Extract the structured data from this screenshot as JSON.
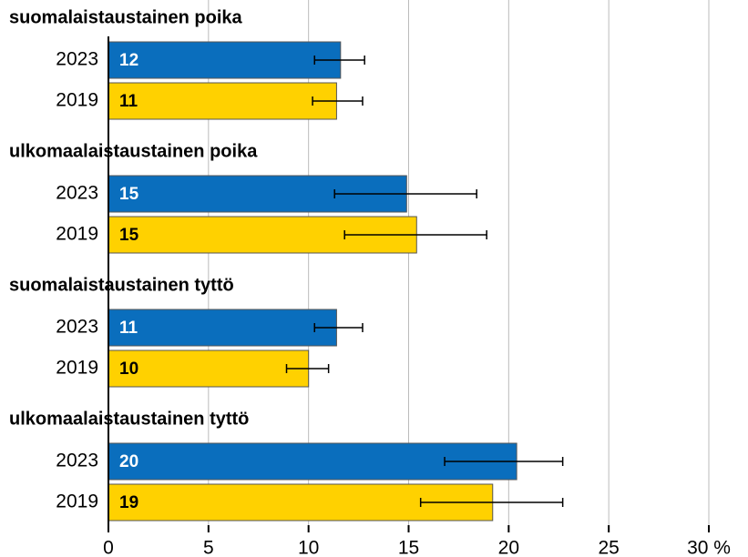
{
  "chart_data": {
    "type": "bar",
    "orientation": "horizontal",
    "categories": [
      "suomalaistaustainen poika",
      "ulkomaalaistaustainen poika",
      "suomalaistaustainen tyttö",
      "ulkomaalaistaustainen tyttö"
    ],
    "series": [
      {
        "name": "2023",
        "color": "#0a6ebd",
        "label_color": "#ffffff",
        "values": [
          11.6,
          14.9,
          11.4,
          20.4
        ],
        "value_labels": [
          "12",
          "15",
          "11",
          "20"
        ],
        "ci_low": [
          10.3,
          11.3,
          10.3,
          16.8
        ],
        "ci_high": [
          12.8,
          18.4,
          12.7,
          22.7
        ]
      },
      {
        "name": "2019",
        "color": "#ffd100",
        "label_color": "#000000",
        "values": [
          11.4,
          15.4,
          10.0,
          19.2
        ],
        "value_labels": [
          "11",
          "15",
          "10",
          "19"
        ],
        "ci_low": [
          10.2,
          11.8,
          8.9,
          15.6
        ],
        "ci_high": [
          12.7,
          18.9,
          11.0,
          22.7
        ]
      }
    ],
    "xlim": [
      0,
      30
    ],
    "xticks": [
      0,
      5,
      10,
      15,
      20,
      25,
      {
        "value": 30,
        "label": "30 %"
      }
    ],
    "grid": true
  }
}
